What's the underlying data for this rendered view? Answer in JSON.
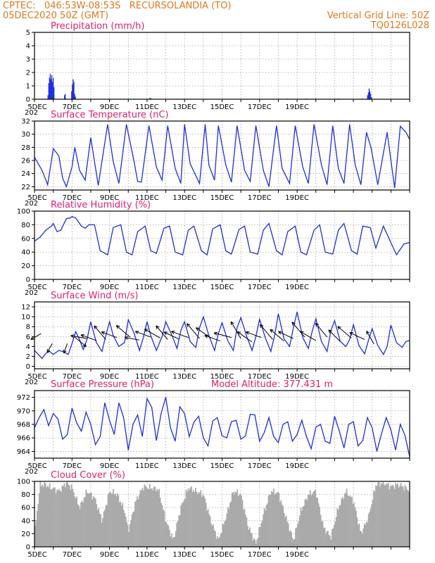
{
  "header": {
    "line1_left": "CPTEC:   046:53W-08:53S   RECURSOLANDIA (TO)",
    "line2_left": "05DEC2020 50Z (GMT)",
    "line2_right": "Vertical Grid Line: 50Z",
    "line3_right": "TQ0126L028"
  },
  "x_ticks": [
    "5DEC",
    "7DEC",
    "9DEC",
    "11DEC",
    "13DEC",
    "15DEC",
    "17DEC",
    "19DEC"
  ],
  "x_subticks": [
    "202",
    "202",
    "202",
    "202",
    "202"
  ],
  "chart_data": [
    {
      "type": "bar",
      "title": "Precipitation (mm/h)",
      "ylim": [
        0,
        5
      ],
      "yticks": [
        "0",
        "1",
        "2",
        "3",
        "4",
        "5"
      ],
      "color": "#1f2fdc",
      "x_days": [
        0.72,
        0.76,
        0.8,
        0.84,
        0.88,
        0.92,
        0.96,
        1.0,
        1.04,
        1.6,
        1.64,
        1.98,
        2.02,
        2.06,
        2.1,
        2.14,
        2.18,
        6.15,
        6.2,
        13.5,
        14.5,
        15.0,
        16.2,
        17.5,
        17.75,
        17.8,
        17.84,
        17.88,
        17.92,
        17.96
      ],
      "values": [
        0.3,
        1.2,
        1.6,
        1.9,
        1.5,
        1.8,
        1.3,
        1.6,
        0.9,
        0.3,
        0.4,
        0.6,
        1.1,
        1.5,
        1.3,
        0.4,
        0.2,
        0.1,
        0.08,
        0.05,
        0.05,
        0.05,
        0.05,
        0.05,
        0.3,
        0.5,
        0.8,
        0.6,
        0.4,
        0.15
      ]
    },
    {
      "type": "line",
      "title": "Surface Temperature (nC)",
      "ylim": [
        21.5,
        32
      ],
      "yticks": [
        "22",
        "24",
        "26",
        "28",
        "30",
        "32"
      ],
      "color": "#1f2fdc",
      "x_days": [
        0,
        0.4,
        0.7,
        1.0,
        1.3,
        1.5,
        1.7,
        2.0,
        2.15,
        2.4,
        2.7,
        3.0,
        3.4,
        3.9,
        4.2,
        4.5,
        4.9,
        5.3,
        5.5,
        5.7,
        6.1,
        6.5,
        6.8,
        7.1,
        7.5,
        7.8,
        8.0,
        8.3,
        8.8,
        9.1,
        9.3,
        9.6,
        9.8,
        10.2,
        10.5,
        10.8,
        11.2,
        11.5,
        11.8,
        12.2,
        12.5,
        12.9,
        13.2,
        13.6,
        13.9,
        14.3,
        14.6,
        14.9,
        15.3,
        15.6,
        15.9,
        16.2,
        16.5,
        16.8,
        17.1,
        17.4,
        17.7,
        17.95,
        18.3,
        18.8,
        19.2,
        19.5,
        19.8,
        20.0
      ],
      "values": [
        26.5,
        24.5,
        22.3,
        27.8,
        26.7,
        23.3,
        22.0,
        25.0,
        28.0,
        24.5,
        23.0,
        29.5,
        22.2,
        31.5,
        25.8,
        22.5,
        31.5,
        26.0,
        22.8,
        22.7,
        31.3,
        25.0,
        23.0,
        31.3,
        24.8,
        22.5,
        31.5,
        25.5,
        22.5,
        31.5,
        25.3,
        23.0,
        31.3,
        25.3,
        22.7,
        31.3,
        24.5,
        22.8,
        31.3,
        24.5,
        22.0,
        31.3,
        24.8,
        22.5,
        31.3,
        25.0,
        22.5,
        31.5,
        25.3,
        22.3,
        31.3,
        24.8,
        22.5,
        31.5,
        25.3,
        22.3,
        30.3,
        27.8,
        22.3,
        30.3,
        21.8,
        31.2,
        30.3,
        29.2
      ]
    },
    {
      "type": "line",
      "title": "Relative Humidity (%)",
      "ylim": [
        0,
        100
      ],
      "yticks": [
        "0",
        "20",
        "40",
        "60",
        "80",
        "100"
      ],
      "color": "#1f2fdc",
      "x_days": [
        0,
        0.3,
        0.6,
        0.9,
        1.0,
        1.2,
        1.4,
        1.7,
        1.9,
        2.0,
        2.2,
        2.5,
        2.7,
        2.9,
        3.2,
        3.5,
        3.9,
        4.2,
        4.6,
        4.9,
        5.2,
        5.5,
        5.9,
        6.2,
        6.5,
        6.9,
        7.2,
        7.5,
        7.9,
        8.2,
        8.5,
        8.9,
        9.2,
        9.5,
        9.9,
        10.2,
        10.5,
        10.9,
        11.2,
        11.5,
        11.9,
        12.2,
        12.5,
        12.9,
        13.2,
        13.5,
        13.9,
        14.2,
        14.5,
        14.9,
        15.2,
        15.5,
        15.9,
        16.2,
        16.5,
        16.9,
        17.2,
        17.5,
        17.9,
        18.2,
        18.6,
        19.0,
        19.3,
        19.7,
        20.0
      ],
      "values": [
        56,
        62,
        72,
        78,
        82,
        70,
        72,
        89,
        90,
        92,
        90,
        78,
        75,
        80,
        80,
        42,
        36,
        76,
        80,
        40,
        36,
        70,
        78,
        42,
        38,
        75,
        78,
        40,
        36,
        72,
        78,
        42,
        36,
        74,
        80,
        42,
        37,
        73,
        78,
        40,
        37,
        72,
        82,
        42,
        36,
        70,
        78,
        40,
        36,
        72,
        80,
        40,
        37,
        72,
        82,
        42,
        37,
        78,
        76,
        46,
        78,
        54,
        36,
        52,
        54
      ]
    },
    {
      "type": "line",
      "title": "Surface Wind (m/s)",
      "ylim": [
        -0.5,
        13
      ],
      "yticks": [
        "0",
        "2",
        "4",
        "6",
        "8",
        "10",
        "12"
      ],
      "color": "#1f2fdc",
      "x_days": [
        0,
        0.2,
        0.4,
        0.6,
        0.8,
        1.0,
        1.3,
        1.5,
        1.8,
        2.0,
        2.2,
        2.4,
        2.6,
        2.8,
        3.0,
        3.3,
        3.6,
        3.8,
        4.0,
        4.2,
        4.5,
        4.8,
        5.0,
        5.3,
        5.6,
        5.8,
        6.0,
        6.2,
        6.5,
        6.8,
        7.0,
        7.3,
        7.6,
        7.8,
        8.0,
        8.3,
        8.6,
        8.8,
        9.0,
        9.3,
        9.6,
        9.8,
        10.0,
        10.3,
        10.6,
        10.8,
        11.0,
        11.3,
        11.6,
        11.8,
        12.0,
        12.3,
        12.6,
        12.8,
        13.0,
        13.3,
        13.6,
        13.8,
        14.0,
        14.3,
        14.6,
        14.8,
        15.0,
        15.3,
        15.6,
        15.8,
        16.0,
        16.3,
        16.6,
        16.8,
        17.0,
        17.3,
        17.6,
        17.8,
        18.0,
        18.3,
        18.6,
        18.8,
        19.0,
        19.3,
        19.6,
        19.8,
        20.0
      ],
      "values": [
        3.2,
        2.4,
        1.6,
        2.6,
        3.0,
        2.4,
        3.2,
        3.0,
        2.4,
        4.6,
        7.0,
        5.4,
        3.4,
        5.4,
        9.0,
        4.8,
        3.0,
        6.2,
        9.0,
        6.2,
        4.0,
        4.8,
        9.4,
        6.8,
        3.2,
        5.8,
        9.0,
        6.2,
        3.2,
        6.0,
        9.0,
        6.5,
        3.6,
        7.2,
        9.0,
        5.0,
        3.8,
        7.8,
        10.0,
        6.2,
        3.2,
        6.6,
        8.8,
        5.2,
        3.2,
        7.8,
        9.8,
        6.2,
        3.2,
        6.0,
        9.5,
        5.8,
        3.0,
        6.2,
        10.6,
        5.6,
        4.0,
        7.8,
        11.0,
        5.8,
        3.6,
        7.0,
        9.6,
        5.0,
        3.0,
        7.2,
        9.2,
        5.0,
        4.0,
        5.4,
        8.4,
        4.2,
        2.5,
        5.2,
        7.6,
        4.2,
        2.4,
        4.0,
        8.3,
        4.8,
        3.8,
        5.0,
        5.2
      ],
      "arrow_x_days": [
        0.35,
        0.95,
        1.75,
        2.15,
        2.8,
        3.3,
        3.8,
        4.4,
        5.1,
        5.6,
        6.2,
        6.7,
        7.1,
        7.7,
        8.2,
        8.8,
        9.4,
        9.9,
        10.5,
        11.0,
        11.6,
        12.1,
        12.7,
        13.3,
        13.8,
        14.4,
        15.0,
        15.6,
        16.3,
        16.9,
        17.6,
        18.1
      ],
      "arrow_y": [
        6.6,
        4.6,
        4.6,
        5.9,
        5.6,
        5.2,
        5.4,
        5.8,
        5.9,
        5.3,
        5.9,
        5.7,
        5.4,
        5.5,
        5.8,
        5.6,
        5.7,
        5.1,
        5.8,
        5.6,
        4.9,
        5.8,
        5.4,
        5.1,
        5.6,
        5.9,
        5.2,
        5.9,
        5.0,
        5.7,
        5.4,
        4.5
      ],
      "arrow_dir_deg": [
        150,
        120,
        110,
        40,
        190,
        200,
        230,
        200,
        220,
        190,
        200,
        210,
        230,
        205,
        200,
        230,
        215,
        200,
        195,
        240,
        215,
        200,
        230,
        220,
        205,
        230,
        210,
        230,
        225,
        220,
        205,
        240
      ],
      "arrow_speed": [
        4,
        3,
        3,
        6,
        7,
        7,
        8,
        7,
        8,
        6,
        7,
        8,
        8,
        7,
        8,
        9,
        8,
        7,
        8,
        9,
        8,
        7,
        9,
        8,
        7,
        9,
        8,
        8,
        7,
        8,
        7,
        6
      ]
    },
    {
      "type": "line",
      "title": "Surface Pressure (hPa)",
      "annotation": "Model Altitude: 377.431  m",
      "ylim": [
        963,
        973
      ],
      "yticks": [
        "964",
        "966",
        "968",
        "970",
        "972"
      ],
      "color": "#1f2fdc",
      "x_days": [
        0,
        0.25,
        0.5,
        0.75,
        1.0,
        1.25,
        1.5,
        1.75,
        2.0,
        2.25,
        2.5,
        2.75,
        3.0,
        3.25,
        3.5,
        3.75,
        4.0,
        4.25,
        4.5,
        4.75,
        5.0,
        5.25,
        5.5,
        5.75,
        6.0,
        6.25,
        6.5,
        6.75,
        7.0,
        7.25,
        7.5,
        7.75,
        8.0,
        8.25,
        8.5,
        8.75,
        9.0,
        9.25,
        9.5,
        9.75,
        10.0,
        10.25,
        10.5,
        10.75,
        11.0,
        11.25,
        11.5,
        11.75,
        12.0,
        12.25,
        12.5,
        12.75,
        13.0,
        13.25,
        13.5,
        13.75,
        14.0,
        14.25,
        14.5,
        14.75,
        15.0,
        15.25,
        15.5,
        15.75,
        16.0,
        16.25,
        16.5,
        16.75,
        17.0,
        17.25,
        17.5,
        17.75,
        18.0,
        18.25,
        18.5,
        18.75,
        19.0,
        19.25,
        19.5,
        19.75,
        20.0
      ],
      "values": [
        967.5,
        969.0,
        970.2,
        967.8,
        969.6,
        968.8,
        965.8,
        966.5,
        970.4,
        968.2,
        967.0,
        969.8,
        968.0,
        965.0,
        966.2,
        971.2,
        968.6,
        966.5,
        971.2,
        969.0,
        964.2,
        968.0,
        969.4,
        966.2,
        971.8,
        970.5,
        965.6,
        969.6,
        972.0,
        967.5,
        965.5,
        970.6,
        969.6,
        966.2,
        968.3,
        969.2,
        966.0,
        964.8,
        968.5,
        969.0,
        966.3,
        966.0,
        968.4,
        968.6,
        965.8,
        966.3,
        969.5,
        969.4,
        965.5,
        966.8,
        969.0,
        966.2,
        965.3,
        968.0,
        968.4,
        965.5,
        966.5,
        968.6,
        966.2,
        964.4,
        967.6,
        968.0,
        965.5,
        965.2,
        969.2,
        967.0,
        964.5,
        968.0,
        968.4,
        964.8,
        965.6,
        969.0,
        967.5,
        964.0,
        966.6,
        969.0,
        967.2,
        964.2,
        968.0,
        966.4,
        963.2
      ]
    },
    {
      "type": "bar",
      "title": "Cloud Cover (%)",
      "ylim": [
        0,
        100
      ],
      "yticks": [
        "0",
        "20",
        "40",
        "60",
        "80",
        "100"
      ],
      "color": "#aaaaaa",
      "profile_days": [
        0,
        0.3,
        0.6,
        0.9,
        1.3,
        1.7,
        2.0,
        2.4,
        2.8,
        3.2,
        3.6,
        4.0,
        4.4,
        4.8,
        5.0,
        5.4,
        5.8,
        6.2,
        6.6,
        7.0,
        7.4,
        7.8,
        8.2,
        8.6,
        9.0,
        9.4,
        9.8,
        10.2,
        10.6,
        11.0,
        11.4,
        11.8,
        12.2,
        12.6,
        13.0,
        13.4,
        13.8,
        14.2,
        14.6,
        15.0,
        15.4,
        15.8,
        16.2,
        16.6,
        17.0,
        17.4,
        17.8,
        18.2,
        18.6,
        19.0,
        19.4,
        19.8,
        20.0
      ],
      "profile_values": [
        20,
        95,
        95,
        90,
        85,
        98,
        90,
        60,
        85,
        75,
        40,
        85,
        80,
        55,
        25,
        70,
        92,
        90,
        88,
        40,
        10,
        60,
        90,
        85,
        80,
        40,
        10,
        45,
        85,
        80,
        30,
        5,
        50,
        85,
        82,
        45,
        10,
        55,
        80,
        85,
        30,
        15,
        60,
        85,
        70,
        20,
        45,
        95,
        98,
        92,
        95,
        90,
        85
      ]
    }
  ]
}
